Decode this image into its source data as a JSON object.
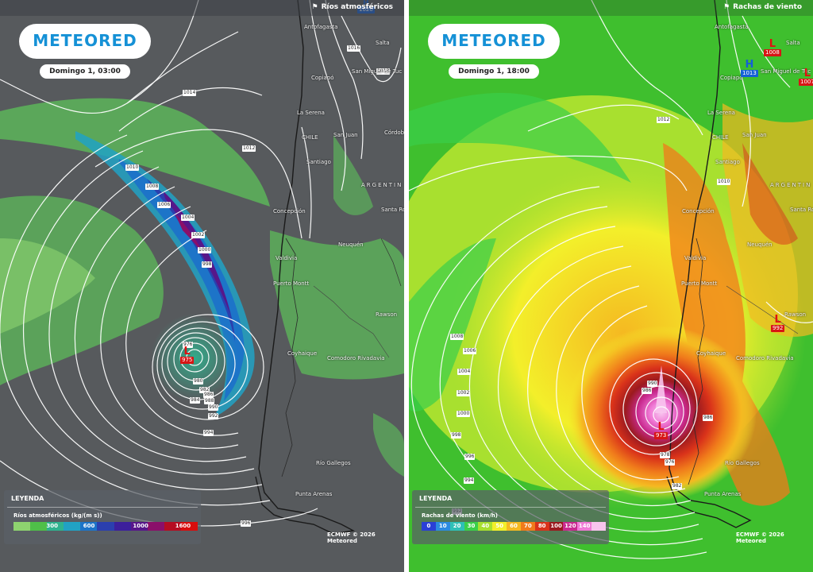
{
  "brand": {
    "logo": "METEORED"
  },
  "credit": "ECMWF © 2026 Meteored",
  "left": {
    "layer": "Ríos atmosféricos",
    "date": "Domingo 1, 03:00",
    "legend": {
      "title": "LEYENDA",
      "unit": "Ríos atmosféricos (kg/(m s))",
      "ticks": [
        "300",
        "600",
        "1000",
        "1600"
      ],
      "colors": [
        "#8ed36f",
        "#4fbf49",
        "#2fb38f",
        "#21a2c4",
        "#1d74c8",
        "#2b3fae",
        "#3c1f9c",
        "#57178a",
        "#8a0f6a",
        "#b50d22",
        "#d80d0d"
      ]
    },
    "places": [
      "Antofagasta",
      "Salta",
      "Copiapó",
      "San Miguel de Tuc",
      "La Serena",
      "Córdob",
      "CHILE",
      "San Juan",
      "Santiago",
      "ARGENTIN",
      "Santa Ros",
      "Concepción",
      "Neuquén",
      "Valdivia",
      "Puerto Montt",
      "Rawson",
      "Coyhaique",
      "Comodoro Rivadavia",
      "Río Gallegos",
      "Punta Arenas"
    ],
    "isobars": [
      "1020",
      "1018",
      "1016",
      "1014",
      "1012",
      "1010",
      "1008",
      "1006",
      "1004",
      "1002",
      "1000",
      "998",
      "976",
      "980",
      "982",
      "984",
      "986",
      "988",
      "990",
      "992",
      "994",
      "996"
    ],
    "low": {
      "letter": "L",
      "value": "975"
    },
    "high": {
      "letter": "H",
      "value": "1020"
    }
  },
  "right": {
    "layer": "Rachas de viento",
    "date": "Domingo 1, 18:00",
    "legend": {
      "title": "LEYENDA",
      "unit": "Rachas de viento (km/h)",
      "ticks": [
        "0",
        "10",
        "20",
        "30",
        "40",
        "50",
        "60",
        "70",
        "80",
        "100",
        "120",
        "140"
      ],
      "colors": [
        "#2a3fd6",
        "#2c8be0",
        "#2fc0b7",
        "#3bcf4a",
        "#a8e02f",
        "#f3ef2a",
        "#f5b921",
        "#f07b1b",
        "#d9321a",
        "#9b1a1f",
        "#c92a8f",
        "#f07ad6",
        "#f8c4ee"
      ]
    },
    "places": [
      "Antofagasta",
      "Salta",
      "Copiapó",
      "San Miguel de Tuc",
      "La Serena",
      "CHILE",
      "San Juan",
      "Santiago",
      "ARGENTIN",
      "Santa Ros",
      "Concepción",
      "Neuquén",
      "Valdivia",
      "Puerto Montt",
      "Rawson",
      "Coyhaique",
      "Comodoro Rivadavia",
      "Río Gallegos",
      "Punta Arenas"
    ],
    "isobars": [
      "1012",
      "1010",
      "1008",
      "1006",
      "1004",
      "1002",
      "1000",
      "998",
      "996",
      "994",
      "992",
      "990",
      "986",
      "982",
      "978",
      "976"
    ],
    "lows": [
      {
        "letter": "L",
        "value": "973"
      },
      {
        "letter": "L",
        "value": "1008"
      },
      {
        "letter": "L",
        "value": "1007"
      },
      {
        "letter": "L",
        "value": "992"
      }
    ],
    "high": {
      "letter": "H",
      "value": "1013"
    }
  },
  "colors": {
    "brand_blue": "#1591d6",
    "low_red": "#d71515",
    "high_blue": "#1560d6"
  }
}
